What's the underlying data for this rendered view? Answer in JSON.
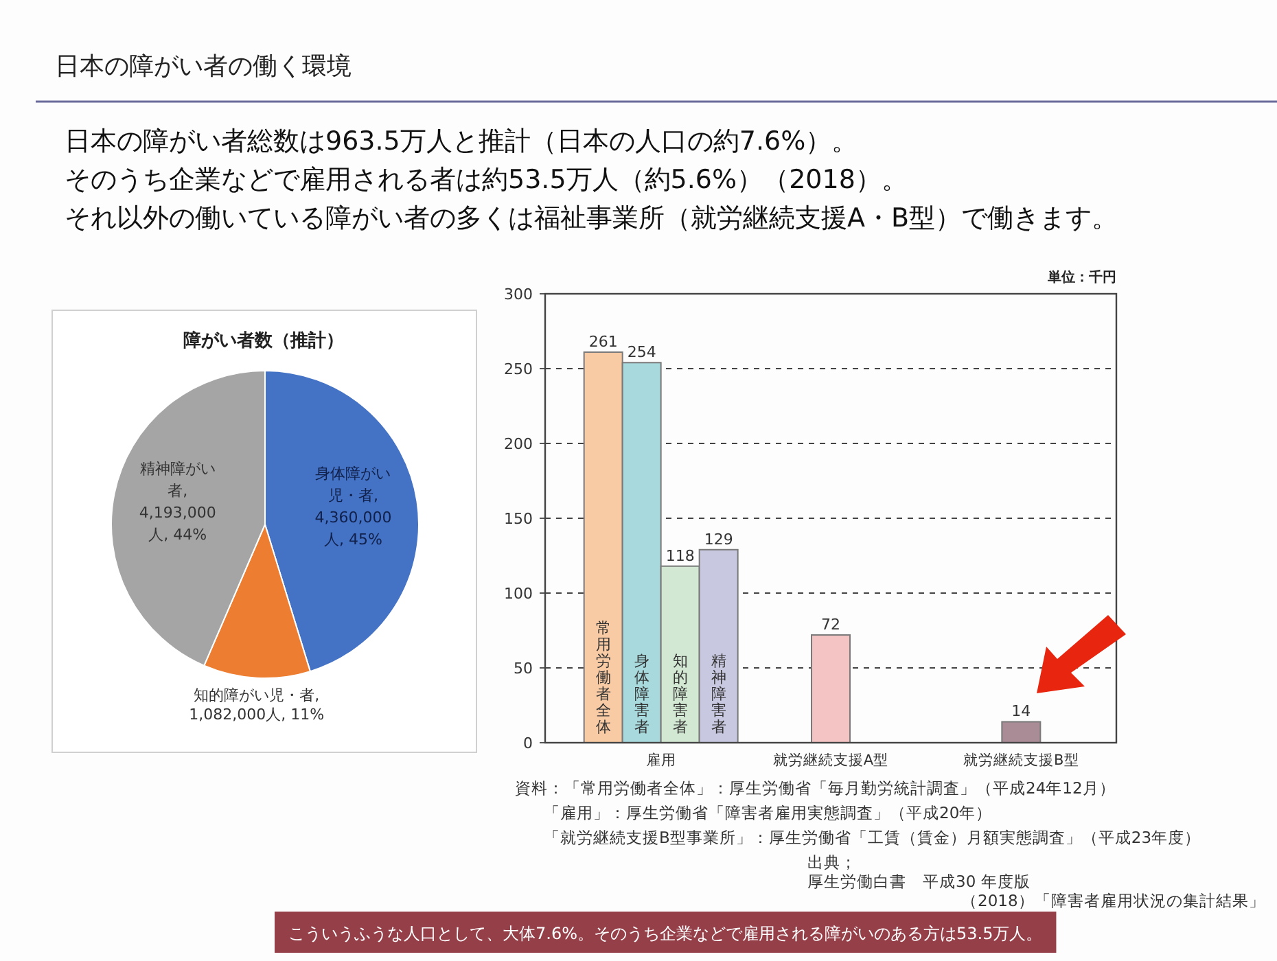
{
  "chart_data": [
    {
      "type": "other",
      "title": "日本の障がい者の働く環境",
      "annotations": [
        "日本の障がい者総数は963.5万人と推計（日本の人口の約7.6%）。",
        "そのうち企業などで雇用される者は約53.5万人（約5.6%）（2018）。",
        "それ以外の働いている障がい者の多くは福祉事業所（就労継続支援A・B型）で働きます。",
        "こういうふうな人口として、大体7.6%。そのうち企業などで雇用される障がいのある方は53.5万人。"
      ]
    },
    {
      "type": "pie",
      "title": "障がい者数（推計）",
      "categories": [
        "身体障がい児・者",
        "知的障がい児・者",
        "精神障がい者"
      ],
      "values": [
        4360000,
        1082000,
        4193000
      ],
      "value_labels": [
        ", 4,360,000人, 45%",
        ", 1,082,000人, 11%",
        ", 4,193,000人, 44%"
      ],
      "colors": [
        "#4472c4",
        "#ed7d31",
        "#a5a5a5"
      ]
    },
    {
      "type": "bar",
      "ylabel": "単位：千円",
      "categories": [
        "雇用",
        "就労継続支援A型",
        "就労継続支援B型"
      ],
      "series": [
        {
          "name": "常用労働者全体",
          "color": "#f9cba4",
          "values": [
            261,
            null,
            null
          ]
        },
        {
          "name": "身体障害者",
          "color": "#a7d9dd",
          "values": [
            254,
            null,
            null
          ]
        },
        {
          "name": "知的障害者",
          "color": "#d2e8d2",
          "values": [
            118,
            null,
            null
          ]
        },
        {
          "name": "精神障害者",
          "color": "#c8c8e0",
          "values": [
            129,
            null,
            null
          ]
        },
        {
          "color": "#f4c4c4",
          "values": [
            null,
            72,
            null
          ]
        },
        {
          "color": "#a98c96",
          "values": [
            null,
            null,
            14
          ]
        }
      ],
      "ylim": [
        0,
        300
      ],
      "yticks": [
        0,
        50,
        100,
        150,
        200,
        250,
        300
      ],
      "grid": "y",
      "data_labels": true,
      "annotations": [
        "資料：「常用労働者全体」：厚生労働省「毎月勤労統計調査」（平成24年12月）",
        "「雇用」：厚生労働省「障害者雇用実態調査」（平成20年）",
        "「就労継続支援B型事業所」：厚生労働省「工賃（賃金）月額実態調査」（平成23年度）",
        "出典；",
        "厚生労働白書　平成30 年度版",
        "（2018）「障害者雇用状況の集計結果」"
      ]
    }
  ]
}
